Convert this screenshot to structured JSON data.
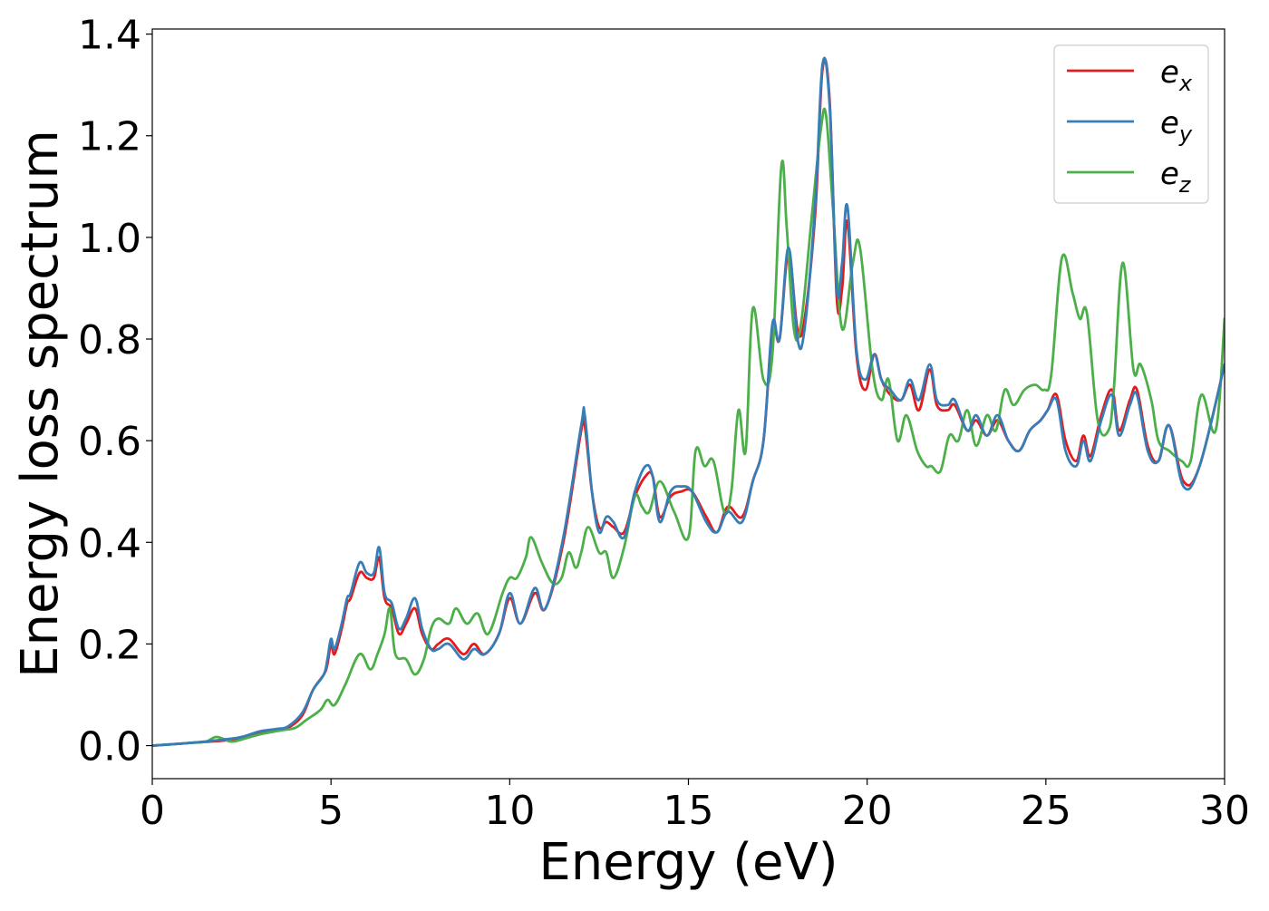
{
  "chart_data": {
    "type": "line",
    "title": "",
    "xlabel": "Energy (eV)",
    "ylabel": "Energy loss spectrum",
    "xlim": [
      0,
      30
    ],
    "ylim": [
      -0.065,
      1.41
    ],
    "xticks": [
      0,
      5,
      10,
      15,
      20,
      25,
      30
    ],
    "xtick_labels": [
      "0",
      "5",
      "10",
      "15",
      "20",
      "25",
      "30"
    ],
    "yticks": [
      0.0,
      0.2,
      0.4,
      0.6,
      0.8,
      1.0,
      1.2,
      1.4
    ],
    "ytick_labels": [
      "0.0",
      "0.2",
      "0.4",
      "0.6",
      "0.8",
      "1.0",
      "1.2",
      "1.4"
    ],
    "grid": false,
    "legend_position": "top-right",
    "series": [
      {
        "name": "e_x",
        "label_main": "e",
        "label_sub": "x",
        "color": "#e41a1c",
        "x": [
          0,
          1,
          2,
          2.5,
          3,
          3.5,
          3.8,
          4.2,
          4.5,
          4.8,
          4.9,
          5.0,
          5.1,
          5.3,
          5.45,
          5.55,
          5.8,
          6.0,
          6.2,
          6.35,
          6.5,
          6.7,
          6.9,
          7.1,
          7.35,
          7.55,
          7.8,
          8.0,
          8.3,
          8.7,
          9.0,
          9.3,
          9.7,
          10.0,
          10.3,
          10.7,
          11.0,
          11.5,
          12.0,
          12.1,
          12.3,
          12.5,
          12.7,
          12.9,
          13.2,
          13.5,
          13.8,
          14.0,
          14.2,
          14.5,
          14.8,
          15.1,
          15.5,
          15.8,
          16.1,
          16.5,
          16.8,
          17.1,
          17.35,
          17.55,
          17.8,
          18.05,
          18.25,
          18.55,
          18.75,
          18.95,
          19.15,
          19.3,
          19.45,
          19.7,
          19.95,
          20.2,
          20.4,
          20.65,
          20.95,
          21.2,
          21.45,
          21.75,
          21.95,
          22.25,
          22.45,
          22.8,
          23.05,
          23.35,
          23.65,
          23.95,
          24.25,
          24.55,
          24.85,
          25.05,
          25.3,
          25.55,
          25.85,
          26.05,
          26.25,
          26.55,
          26.85,
          27.05,
          27.35,
          27.55,
          27.85,
          28.15,
          28.45,
          28.85,
          29.3,
          30.0
        ],
        "y": [
          0.0,
          0.005,
          0.01,
          0.015,
          0.025,
          0.03,
          0.035,
          0.06,
          0.11,
          0.14,
          0.16,
          0.2,
          0.18,
          0.23,
          0.28,
          0.29,
          0.34,
          0.33,
          0.33,
          0.37,
          0.29,
          0.27,
          0.22,
          0.24,
          0.27,
          0.22,
          0.19,
          0.2,
          0.21,
          0.18,
          0.2,
          0.18,
          0.22,
          0.29,
          0.24,
          0.3,
          0.27,
          0.4,
          0.62,
          0.63,
          0.5,
          0.43,
          0.44,
          0.43,
          0.42,
          0.49,
          0.53,
          0.53,
          0.45,
          0.49,
          0.5,
          0.5,
          0.45,
          0.42,
          0.47,
          0.45,
          0.52,
          0.6,
          0.82,
          0.8,
          0.97,
          0.82,
          0.84,
          1.05,
          1.33,
          1.27,
          0.88,
          0.9,
          1.03,
          0.77,
          0.7,
          0.77,
          0.72,
          0.69,
          0.68,
          0.71,
          0.66,
          0.74,
          0.67,
          0.66,
          0.67,
          0.62,
          0.64,
          0.61,
          0.64,
          0.6,
          0.58,
          0.62,
          0.64,
          0.66,
          0.69,
          0.6,
          0.56,
          0.61,
          0.57,
          0.65,
          0.7,
          0.62,
          0.68,
          0.7,
          0.59,
          0.56,
          0.63,
          0.52,
          0.55,
          0.75
        ]
      },
      {
        "name": "e_y",
        "label_main": "e",
        "label_sub": "y",
        "color": "#377eb8",
        "x": [
          0,
          1,
          2,
          2.5,
          3,
          3.5,
          3.8,
          4.2,
          4.5,
          4.8,
          4.9,
          5.0,
          5.1,
          5.3,
          5.45,
          5.55,
          5.8,
          6.0,
          6.2,
          6.35,
          6.5,
          6.7,
          6.9,
          7.1,
          7.35,
          7.55,
          7.8,
          8.0,
          8.3,
          8.7,
          9.0,
          9.3,
          9.7,
          10.0,
          10.3,
          10.7,
          11.0,
          11.5,
          12.0,
          12.1,
          12.3,
          12.5,
          12.7,
          12.9,
          13.2,
          13.5,
          13.8,
          14.0,
          14.2,
          14.5,
          14.8,
          15.1,
          15.5,
          15.8,
          16.1,
          16.5,
          16.8,
          17.1,
          17.35,
          17.55,
          17.8,
          18.05,
          18.25,
          18.55,
          18.75,
          18.95,
          19.15,
          19.3,
          19.45,
          19.7,
          19.95,
          20.2,
          20.4,
          20.65,
          20.95,
          21.2,
          21.45,
          21.75,
          21.95,
          22.25,
          22.45,
          22.8,
          23.05,
          23.35,
          23.65,
          23.95,
          24.25,
          24.55,
          24.85,
          25.05,
          25.3,
          25.55,
          25.85,
          26.05,
          26.25,
          26.55,
          26.85,
          27.05,
          27.35,
          27.55,
          27.85,
          28.15,
          28.45,
          28.85,
          29.3,
          30.0
        ],
        "y": [
          0.0,
          0.005,
          0.012,
          0.017,
          0.028,
          0.033,
          0.038,
          0.065,
          0.11,
          0.14,
          0.17,
          0.21,
          0.19,
          0.24,
          0.29,
          0.3,
          0.36,
          0.34,
          0.34,
          0.39,
          0.3,
          0.28,
          0.23,
          0.25,
          0.29,
          0.23,
          0.19,
          0.19,
          0.2,
          0.17,
          0.19,
          0.18,
          0.22,
          0.3,
          0.24,
          0.31,
          0.27,
          0.41,
          0.63,
          0.65,
          0.5,
          0.42,
          0.45,
          0.44,
          0.41,
          0.5,
          0.55,
          0.53,
          0.44,
          0.5,
          0.51,
          0.5,
          0.44,
          0.42,
          0.46,
          0.44,
          0.52,
          0.6,
          0.83,
          0.8,
          0.98,
          0.8,
          0.82,
          1.07,
          1.34,
          1.26,
          0.9,
          0.95,
          1.06,
          0.78,
          0.72,
          0.77,
          0.72,
          0.7,
          0.68,
          0.72,
          0.68,
          0.75,
          0.68,
          0.67,
          0.68,
          0.62,
          0.65,
          0.61,
          0.65,
          0.6,
          0.58,
          0.62,
          0.64,
          0.66,
          0.68,
          0.58,
          0.55,
          0.6,
          0.56,
          0.64,
          0.69,
          0.61,
          0.67,
          0.69,
          0.58,
          0.56,
          0.63,
          0.51,
          0.55,
          0.75
        ]
      },
      {
        "name": "e_z",
        "label_main": "e",
        "label_sub": "z",
        "color": "#4daf4a",
        "x": [
          0,
          1,
          1.5,
          1.8,
          2.2,
          2.5,
          3.0,
          3.6,
          4.0,
          4.3,
          4.7,
          4.9,
          5.1,
          5.4,
          5.8,
          6.1,
          6.3,
          6.5,
          6.65,
          6.8,
          7.1,
          7.35,
          7.6,
          7.8,
          8.0,
          8.3,
          8.5,
          8.8,
          9.1,
          9.4,
          9.8,
          10.0,
          10.2,
          10.45,
          10.6,
          10.9,
          11.2,
          11.45,
          11.65,
          11.85,
          12.0,
          12.2,
          12.5,
          12.7,
          12.9,
          13.2,
          13.5,
          13.7,
          13.9,
          14.2,
          14.6,
          15.0,
          15.2,
          15.45,
          15.7,
          16.0,
          16.2,
          16.4,
          16.6,
          16.8,
          17.1,
          17.35,
          17.6,
          17.75,
          17.95,
          18.15,
          18.45,
          18.7,
          18.85,
          19.05,
          19.3,
          19.6,
          19.8,
          20.15,
          20.4,
          20.6,
          20.85,
          21.1,
          21.4,
          21.65,
          21.8,
          22.05,
          22.3,
          22.55,
          22.8,
          23.05,
          23.35,
          23.6,
          23.85,
          24.1,
          24.4,
          24.7,
          24.95,
          25.15,
          25.45,
          25.75,
          25.95,
          26.15,
          26.45,
          26.75,
          26.9,
          27.15,
          27.45,
          27.65,
          27.95,
          28.15,
          28.45,
          28.8,
          29.05,
          29.35,
          29.75,
          30.0
        ],
        "y": [
          0.0,
          0.005,
          0.008,
          0.017,
          0.008,
          0.012,
          0.022,
          0.03,
          0.035,
          0.05,
          0.07,
          0.09,
          0.08,
          0.12,
          0.18,
          0.15,
          0.18,
          0.22,
          0.27,
          0.18,
          0.17,
          0.14,
          0.17,
          0.23,
          0.25,
          0.24,
          0.27,
          0.24,
          0.26,
          0.22,
          0.3,
          0.33,
          0.33,
          0.37,
          0.41,
          0.36,
          0.32,
          0.33,
          0.38,
          0.35,
          0.38,
          0.43,
          0.38,
          0.38,
          0.33,
          0.39,
          0.49,
          0.47,
          0.46,
          0.52,
          0.46,
          0.41,
          0.58,
          0.55,
          0.56,
          0.46,
          0.5,
          0.66,
          0.58,
          0.86,
          0.72,
          0.77,
          1.14,
          1.02,
          0.82,
          0.83,
          1.04,
          1.21,
          1.24,
          1.05,
          0.82,
          0.95,
          0.98,
          0.74,
          0.68,
          0.72,
          0.6,
          0.65,
          0.58,
          0.55,
          0.55,
          0.54,
          0.61,
          0.6,
          0.66,
          0.59,
          0.65,
          0.62,
          0.7,
          0.67,
          0.7,
          0.71,
          0.7,
          0.73,
          0.96,
          0.89,
          0.84,
          0.85,
          0.64,
          0.62,
          0.7,
          0.95,
          0.74,
          0.75,
          0.68,
          0.6,
          0.58,
          0.56,
          0.56,
          0.69,
          0.62,
          0.84
        ]
      }
    ]
  }
}
